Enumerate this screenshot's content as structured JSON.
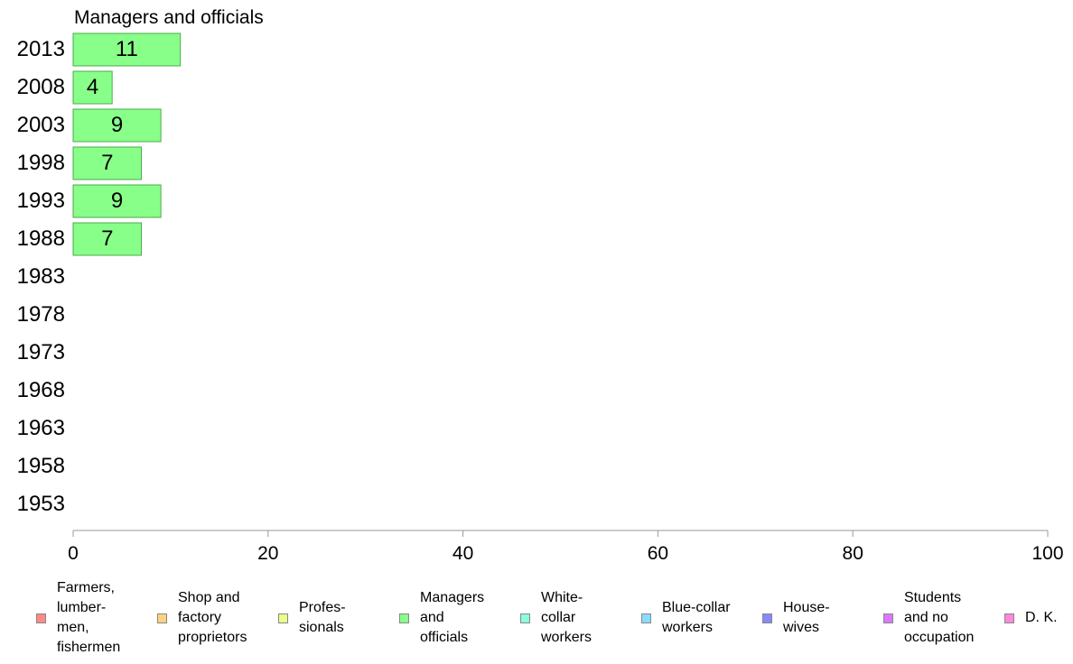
{
  "chart_data": {
    "type": "bar",
    "orientation": "horizontal",
    "title": "Managers and officials",
    "categories": [
      "2013",
      "2008",
      "2003",
      "1998",
      "1993",
      "1988",
      "1983",
      "1978",
      "1973",
      "1968",
      "1963",
      "1958",
      "1953"
    ],
    "values": [
      11,
      4,
      9,
      7,
      9,
      7,
      null,
      null,
      null,
      null,
      null,
      null,
      null
    ],
    "data_labels": [
      "11",
      "4",
      "9",
      "7",
      "9",
      "7",
      "",
      "",
      "",
      "",
      "",
      "",
      ""
    ],
    "xlim": [
      0,
      100
    ],
    "x_ticks": [
      "0",
      "20",
      "40",
      "60",
      "80",
      "100"
    ],
    "bar_color": "#88ff88",
    "bar_edge_color": "#4daa4d",
    "grid": false,
    "legend_position": "bottom"
  },
  "legend": [
    {
      "label": "Farmers,\nlumber-\nmen,\nfishermen",
      "color": "#ff8888"
    },
    {
      "label": "Shop and\nfactory\nproprietors",
      "color": "#ffd280"
    },
    {
      "label": "Profes-\nsionals",
      "color": "#e8ff88"
    },
    {
      "label": "Managers\nand\nofficials",
      "color": "#88ff88"
    },
    {
      "label": "White-\ncollar\nworkers",
      "color": "#88ffdd"
    },
    {
      "label": "Blue-collar\nworkers",
      "color": "#88ddff"
    },
    {
      "label": "House-\nwives",
      "color": "#8888ff"
    },
    {
      "label": "Students\nand no\noccupation",
      "color": "#dd77ff"
    },
    {
      "label": "D. K.",
      "color": "#ff88dd"
    }
  ]
}
